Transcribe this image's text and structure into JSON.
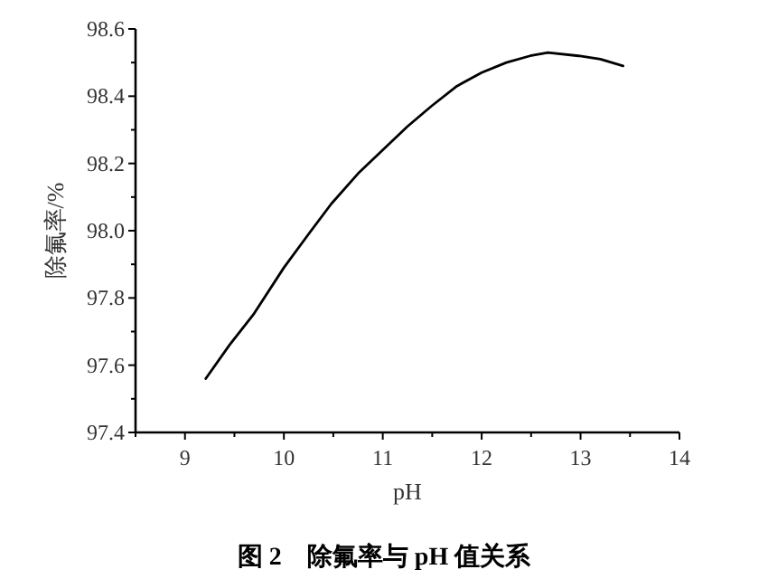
{
  "chart_data": {
    "type": "line",
    "title": "图 2　除氟率与 pH 值关系",
    "xlabel": "pH",
    "ylabel": "除氟率/%",
    "x": [
      9.21,
      9.45,
      9.69,
      10.0,
      10.25,
      10.48,
      10.75,
      11.0,
      11.25,
      11.49,
      11.75,
      12.0,
      12.25,
      12.49,
      12.67,
      12.98,
      13.2,
      13.43
    ],
    "series": [
      {
        "color": "#000000",
        "values": [
          97.56,
          97.66,
          97.75,
          97.89,
          97.99,
          98.08,
          98.17,
          98.24,
          98.31,
          98.37,
          98.43,
          98.47,
          98.5,
          98.52,
          98.53,
          98.52,
          98.51,
          98.49
        ]
      }
    ],
    "xlim": [
      8.5,
      14
    ],
    "xticks": [
      9,
      10,
      11,
      12,
      13,
      14
    ],
    "ylim": [
      97.4,
      98.6
    ],
    "yticks": [
      {
        "value": 97.4,
        "label": "97.4"
      },
      {
        "value": 97.6,
        "label": "97.6"
      },
      {
        "value": 97.8,
        "label": "97.8"
      },
      {
        "value": 98.0,
        "label": "98.0"
      },
      {
        "value": 98.2,
        "label": "98.2"
      },
      {
        "value": 98.4,
        "label": "98.4"
      },
      {
        "value": 98.6,
        "label": "98.6"
      }
    ],
    "grid": false,
    "marker": "none",
    "line_style": "solid"
  }
}
